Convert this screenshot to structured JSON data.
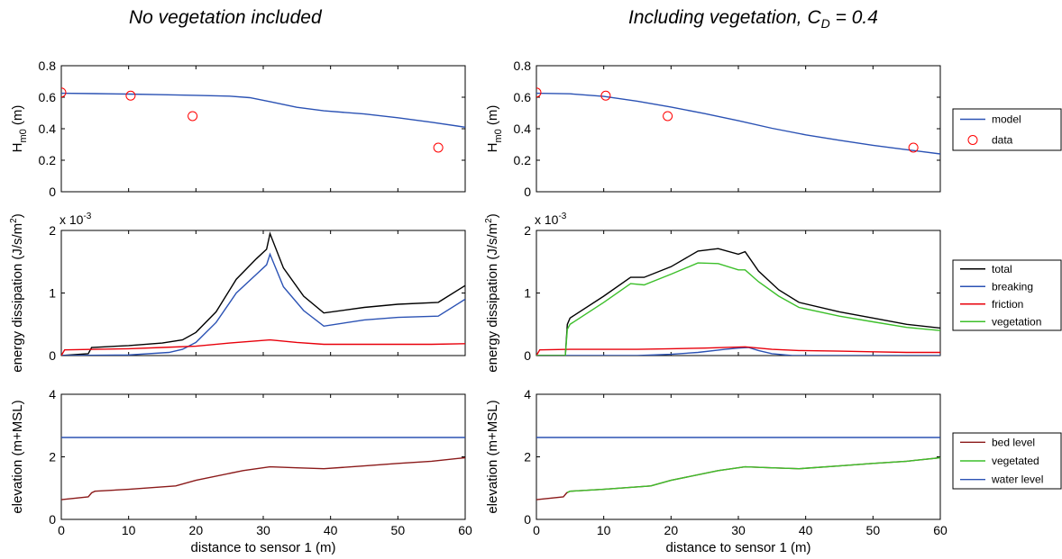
{
  "figure": {
    "left_title": "No vegetation included",
    "right_title_main": "Including vegetation, C",
    "right_title_sub": "D",
    "right_title_tail": " = 0.4"
  },
  "chart_data": [
    {
      "type": "line",
      "panel": "Hm0 - no vegetation",
      "ylabel": "H",
      "ylabel_sub": "m0",
      "ylabel_unit": " (m)",
      "xlim": [
        0,
        60
      ],
      "ylim": [
        0,
        0.8
      ],
      "xticks": [
        0,
        10,
        20,
        30,
        40,
        50,
        60
      ],
      "yticks": [
        0,
        0.2,
        0.4,
        0.6,
        0.8
      ],
      "show_xtick_labels": false,
      "series": [
        {
          "name": "model",
          "color": "#2b52b4",
          "style": "line",
          "x": [
            0,
            5,
            10,
            15,
            20,
            25,
            28,
            31,
            35,
            39,
            45,
            50,
            55,
            60
          ],
          "y": [
            0.625,
            0.623,
            0.62,
            0.616,
            0.612,
            0.607,
            0.597,
            0.572,
            0.536,
            0.514,
            0.494,
            0.47,
            0.441,
            0.41
          ]
        },
        {
          "name": "data",
          "color": "#ff0000",
          "style": "marker",
          "x": [
            0,
            10.3,
            19.5,
            56
          ],
          "y": [
            0.63,
            0.61,
            0.48,
            0.28
          ]
        }
      ]
    },
    {
      "type": "line",
      "panel": "Hm0 - vegetation",
      "ylabel": "H",
      "ylabel_sub": "m0",
      "ylabel_unit": " (m)",
      "xlim": [
        0,
        60
      ],
      "ylim": [
        0,
        0.8
      ],
      "xticks": [
        0,
        10,
        20,
        30,
        40,
        50,
        60
      ],
      "yticks": [
        0,
        0.2,
        0.4,
        0.6,
        0.8
      ],
      "show_xtick_labels": false,
      "legend": "right",
      "series": [
        {
          "name": "model",
          "color": "#2b52b4",
          "style": "line",
          "x": [
            0,
            5,
            10,
            15,
            20,
            25,
            30,
            35,
            40,
            45,
            50,
            55,
            60
          ],
          "y": [
            0.625,
            0.622,
            0.605,
            0.575,
            0.538,
            0.496,
            0.451,
            0.403,
            0.361,
            0.327,
            0.295,
            0.267,
            0.24
          ]
        },
        {
          "name": "data",
          "color": "#ff0000",
          "style": "marker",
          "x": [
            0,
            10.3,
            19.5,
            56
          ],
          "y": [
            0.63,
            0.61,
            0.48,
            0.28
          ]
        }
      ]
    },
    {
      "type": "line",
      "panel": "energy dissipation - no vegetation",
      "ylabel": "energy dissipation (J/s/m",
      "ylabel_sup": "2",
      "ylabel_tail": ")",
      "multiplier_base": "x 10",
      "multiplier_exp": "-3",
      "xlim": [
        0,
        60
      ],
      "ylim": [
        0,
        2
      ],
      "xticks": [
        0,
        10,
        20,
        30,
        40,
        50,
        60
      ],
      "yticks": [
        0,
        1,
        2
      ],
      "show_xtick_labels": false,
      "series": [
        {
          "name": "total",
          "color": "#000000",
          "style": "line",
          "x": [
            0,
            4,
            4.5,
            10,
            15,
            18,
            20,
            23,
            26,
            29,
            30.5,
            31,
            33,
            36,
            39,
            45,
            50,
            56,
            60
          ],
          "y": [
            0.0,
            0.03,
            0.13,
            0.16,
            0.2,
            0.25,
            0.37,
            0.7,
            1.22,
            1.55,
            1.7,
            1.95,
            1.4,
            0.95,
            0.68,
            0.77,
            0.82,
            0.85,
            1.12
          ]
        },
        {
          "name": "breaking",
          "color": "#2b52b4",
          "style": "line",
          "x": [
            0,
            10,
            16,
            18,
            20,
            23,
            26,
            29,
            30.5,
            31,
            33,
            36,
            39,
            45,
            50,
            56,
            60
          ],
          "y": [
            0.0,
            0.01,
            0.05,
            0.1,
            0.21,
            0.53,
            1.0,
            1.3,
            1.45,
            1.62,
            1.1,
            0.72,
            0.47,
            0.57,
            0.61,
            0.63,
            0.9
          ]
        },
        {
          "name": "friction",
          "color": "#e8000b",
          "style": "line",
          "x": [
            0,
            0.5,
            5,
            10,
            15,
            20,
            25,
            31,
            35,
            39,
            45,
            50,
            55,
            60
          ],
          "y": [
            0.0,
            0.09,
            0.1,
            0.11,
            0.13,
            0.15,
            0.2,
            0.25,
            0.21,
            0.18,
            0.18,
            0.18,
            0.18,
            0.19
          ]
        }
      ]
    },
    {
      "type": "line",
      "panel": "energy dissipation - vegetation",
      "ylabel": "energy dissipation (J/s/m",
      "ylabel_sup": "2",
      "ylabel_tail": ")",
      "multiplier_base": "x 10",
      "multiplier_exp": "-3",
      "xlim": [
        0,
        60
      ],
      "ylim": [
        0,
        2
      ],
      "xticks": [
        0,
        10,
        20,
        30,
        40,
        50,
        60
      ],
      "yticks": [
        0,
        1,
        2
      ],
      "show_xtick_labels": false,
      "legend": "right",
      "series": [
        {
          "name": "total",
          "color": "#000000",
          "style": "line",
          "x": [
            0,
            4.3,
            4.6,
            5,
            10,
            14,
            16,
            20,
            24,
            27,
            30,
            31,
            33,
            36,
            39,
            45,
            50,
            55,
            60
          ],
          "y": [
            0.0,
            0.0,
            0.5,
            0.6,
            0.95,
            1.25,
            1.25,
            1.42,
            1.67,
            1.71,
            1.62,
            1.66,
            1.35,
            1.05,
            0.85,
            0.7,
            0.6,
            0.5,
            0.44
          ]
        },
        {
          "name": "breaking",
          "color": "#2b52b4",
          "style": "line",
          "x": [
            0,
            15,
            20,
            24,
            28,
            30,
            31.5,
            33,
            35,
            38,
            60
          ],
          "y": [
            0.0,
            0.0,
            0.02,
            0.05,
            0.1,
            0.12,
            0.13,
            0.08,
            0.03,
            0.0,
            0.0
          ]
        },
        {
          "name": "friction",
          "color": "#e8000b",
          "style": "line",
          "x": [
            0,
            0.5,
            5,
            10,
            15,
            20,
            25,
            31,
            35,
            39,
            45,
            50,
            55,
            60
          ],
          "y": [
            0.0,
            0.09,
            0.1,
            0.1,
            0.1,
            0.11,
            0.12,
            0.14,
            0.1,
            0.08,
            0.07,
            0.06,
            0.05,
            0.05
          ]
        },
        {
          "name": "vegetation",
          "color": "#3cbf2a",
          "style": "line",
          "x": [
            0,
            4.3,
            4.6,
            5,
            10,
            14,
            16,
            20,
            24,
            27,
            30,
            31,
            33,
            36,
            39,
            45,
            50,
            55,
            60
          ],
          "y": [
            0.0,
            0.0,
            0.42,
            0.5,
            0.85,
            1.15,
            1.13,
            1.3,
            1.48,
            1.47,
            1.37,
            1.37,
            1.18,
            0.95,
            0.77,
            0.63,
            0.54,
            0.45,
            0.4
          ]
        }
      ]
    },
    {
      "type": "line",
      "panel": "elevation - no vegetation",
      "ylabel": "elevation (m+MSL)",
      "xlabel": "distance to sensor 1 (m)",
      "xlim": [
        0,
        60
      ],
      "ylim": [
        0,
        4
      ],
      "xticks": [
        0,
        10,
        20,
        30,
        40,
        50,
        60
      ],
      "yticks": [
        0,
        2,
        4
      ],
      "show_xtick_labels": true,
      "series": [
        {
          "name": "bed level",
          "color": "#8b1a1a",
          "style": "line",
          "x": [
            0,
            4,
            4.5,
            5,
            10,
            17,
            20,
            27,
            31,
            35,
            39,
            45,
            50,
            55,
            60
          ],
          "y": [
            0.63,
            0.72,
            0.85,
            0.9,
            0.96,
            1.07,
            1.25,
            1.56,
            1.68,
            1.65,
            1.62,
            1.71,
            1.79,
            1.86,
            1.97
          ]
        },
        {
          "name": "water level",
          "color": "#2b52b4",
          "style": "line",
          "x": [
            0,
            60
          ],
          "y": [
            2.62,
            2.62
          ]
        }
      ]
    },
    {
      "type": "line",
      "panel": "elevation - vegetation",
      "ylabel": "elevation (m+MSL)",
      "xlabel": "distance to sensor 1 (m)",
      "xlim": [
        0,
        60
      ],
      "ylim": [
        0,
        4
      ],
      "xticks": [
        0,
        10,
        20,
        30,
        40,
        50,
        60
      ],
      "yticks": [
        0,
        2,
        4
      ],
      "show_xtick_labels": true,
      "legend": "right",
      "series": [
        {
          "name": "bed level",
          "color": "#8b1a1a",
          "style": "line",
          "x": [
            0,
            4,
            4.5,
            5,
            10,
            17,
            20,
            27,
            31,
            35,
            39,
            45,
            50,
            55,
            60
          ],
          "y": [
            0.63,
            0.72,
            0.85,
            0.9,
            0.96,
            1.07,
            1.25,
            1.56,
            1.68,
            1.65,
            1.62,
            1.71,
            1.79,
            1.86,
            1.97
          ]
        },
        {
          "name": "vegetated",
          "color": "#3cbf2a",
          "style": "line",
          "x": [
            4.6,
            5,
            10,
            17,
            20,
            27,
            31,
            35,
            39,
            45,
            50,
            55,
            60
          ],
          "y": [
            0.86,
            0.9,
            0.96,
            1.07,
            1.25,
            1.56,
            1.68,
            1.65,
            1.62,
            1.71,
            1.79,
            1.86,
            1.97
          ]
        },
        {
          "name": "water level",
          "color": "#2b52b4",
          "style": "line",
          "x": [
            0,
            60
          ],
          "y": [
            2.62,
            2.62
          ]
        }
      ]
    }
  ]
}
